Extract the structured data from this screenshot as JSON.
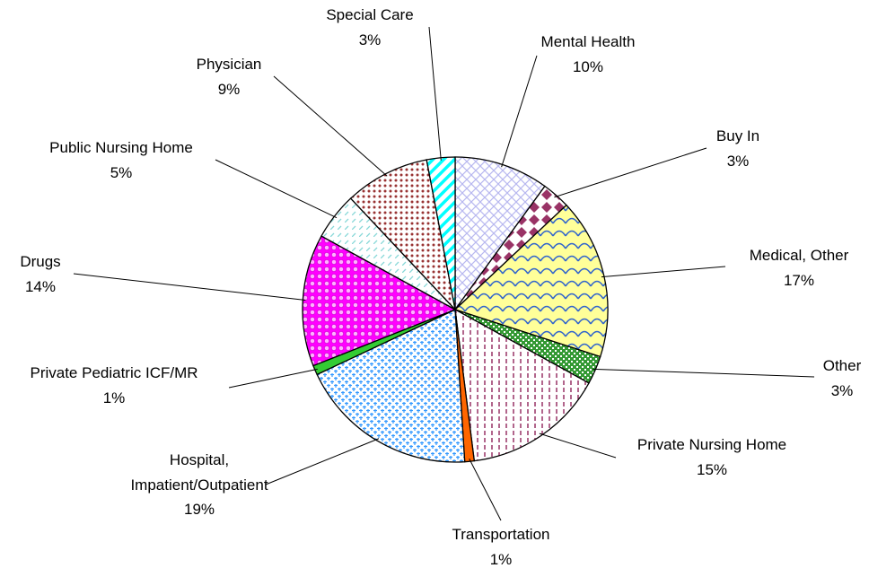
{
  "chart_data": {
    "type": "pie",
    "categories": [
      "Mental Health",
      "Buy In",
      "Medical, Other",
      "Other",
      "Private Nursing Home",
      "Transportation",
      "Hospital, Impatient/Outpatient",
      "Private Pediatric ICF/MR",
      "Drugs",
      "Public Nursing Home",
      "Physician",
      "Special Care"
    ],
    "values": [
      10,
      3,
      17,
      3,
      15,
      1,
      19,
      1,
      14,
      5,
      9,
      3
    ],
    "value_labels": [
      "10%",
      "3%",
      "17%",
      "3%",
      "15%",
      "1%",
      "19%",
      "1%",
      "14%",
      "5%",
      "9%",
      "3%"
    ],
    "colors": [
      "#b8b8f0",
      "#993366",
      "#ffff99",
      "#339933",
      "#993366",
      "#ff6600",
      "#3399ff",
      "#33cc33",
      "#ff00ff",
      "#88d8d8",
      "#993333",
      "#00ffff"
    ]
  }
}
